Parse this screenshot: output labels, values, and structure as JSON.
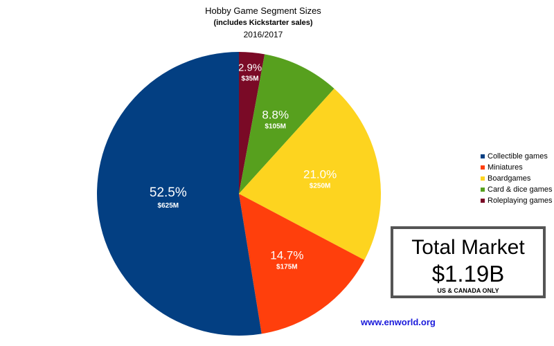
{
  "chart_data": {
    "type": "pie",
    "title": "Hobby Game Segment Sizes",
    "subtitle": "(includes Kickstarter sales)",
    "period": "2016/2017",
    "slices": [
      {
        "name": "Roleplaying games",
        "percent": 2.9,
        "percent_label": "2.9%",
        "value_label": "$35M",
        "color": "#7a0a26"
      },
      {
        "name": "Card & dice games",
        "percent": 8.8,
        "percent_label": "8.8%",
        "value_label": "$105M",
        "color": "#57a01e"
      },
      {
        "name": "Boardgames",
        "percent": 21.0,
        "percent_label": "21.0%",
        "value_label": "$250M",
        "color": "#fdd41f"
      },
      {
        "name": "Miniatures",
        "percent": 14.7,
        "percent_label": "14.7%",
        "value_label": "$175M",
        "color": "#ff3f0c"
      },
      {
        "name": "Collectible games",
        "percent": 52.5,
        "percent_label": "52.5%",
        "value_label": "$625M",
        "color": "#033f82"
      }
    ],
    "legend": [
      "Collectible games",
      "Miniatures",
      "Boardgames",
      "Card & dice games",
      "Roleplaying games"
    ],
    "legend_colors": [
      "#033f82",
      "#ff3f0c",
      "#fdd41f",
      "#57a01e",
      "#7a0a26"
    ],
    "legend_position": "right"
  },
  "total_box": {
    "label": "Total Market",
    "value": "$1.19B",
    "note": "US & CANADA ONLY"
  },
  "credit": "www.enworld.org"
}
